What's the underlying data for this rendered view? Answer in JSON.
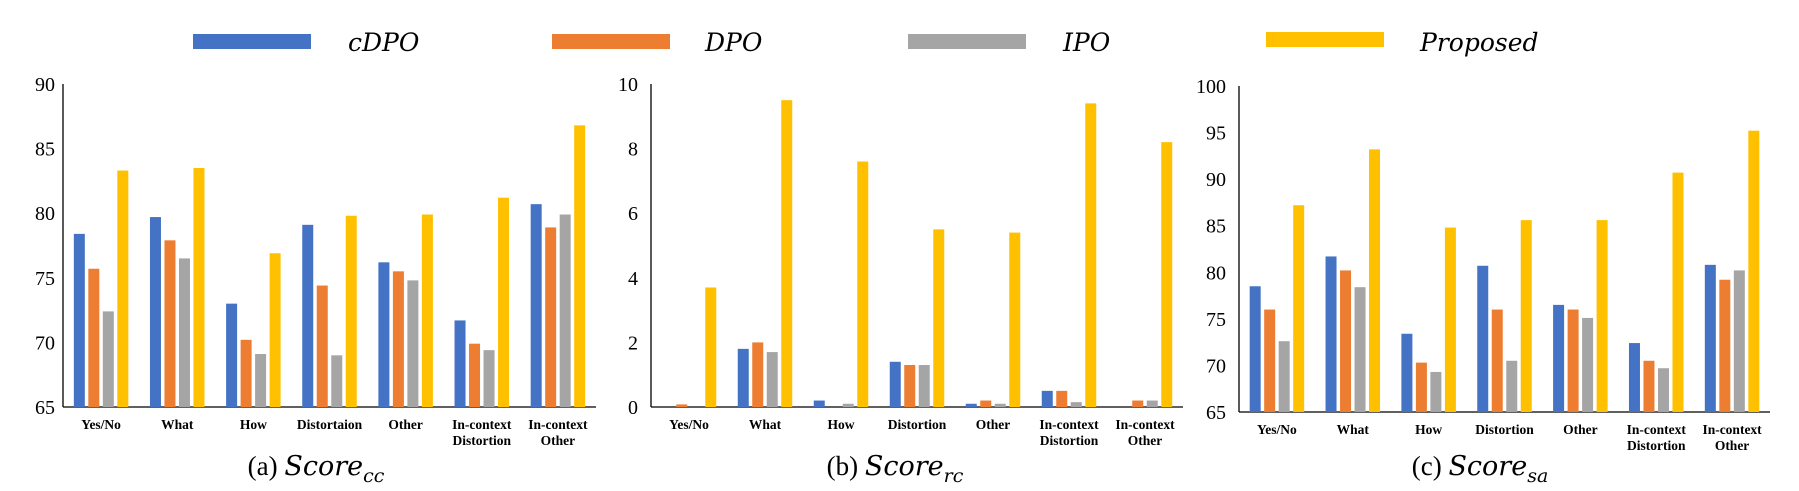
{
  "legend": [
    {
      "name": "cDPO",
      "color": "#4472C4"
    },
    {
      "name": "DPO",
      "color": "#ED7D31"
    },
    {
      "name": "IPO",
      "color": "#A5A5A5"
    },
    {
      "name": "Proposed",
      "color": "#FFC000"
    }
  ],
  "chart_data": [
    {
      "type": "bar",
      "caption_prefix": "(a) ",
      "caption_main": "Score",
      "caption_sub": "cc",
      "categories": [
        "Yes/No",
        "What",
        "How",
        "Distortaion",
        "Other",
        "In-context Distortion",
        "In-context Other"
      ],
      "ylim": [
        65,
        90
      ],
      "yticks": [
        65,
        70,
        75,
        80,
        85,
        90
      ],
      "series": [
        {
          "name": "cDPO",
          "values": [
            78.4,
            79.7,
            73.0,
            79.1,
            76.2,
            71.7,
            80.7
          ]
        },
        {
          "name": "DPO",
          "values": [
            75.7,
            77.9,
            70.2,
            74.4,
            75.5,
            69.9,
            78.9
          ]
        },
        {
          "name": "IPO",
          "values": [
            72.4,
            76.5,
            69.1,
            69.0,
            74.8,
            69.4,
            79.9
          ]
        },
        {
          "name": "Proposed",
          "values": [
            83.3,
            83.5,
            76.9,
            79.8,
            79.9,
            81.2,
            86.8
          ]
        }
      ]
    },
    {
      "type": "bar",
      "caption_prefix": "(b) ",
      "caption_main": "Score",
      "caption_sub": "rc",
      "categories": [
        "Yes/No",
        "What",
        "How",
        "Distortion",
        "Other",
        "In-context Distortion",
        "In-context Other"
      ],
      "ylim": [
        0,
        10
      ],
      "yticks": [
        0,
        2,
        4,
        6,
        8,
        10
      ],
      "series": [
        {
          "name": "cDPO",
          "values": [
            0.0,
            1.8,
            0.2,
            1.4,
            0.1,
            0.5,
            0.0
          ]
        },
        {
          "name": "DPO",
          "values": [
            0.08,
            2.0,
            0.0,
            1.3,
            0.2,
            0.5,
            0.2
          ]
        },
        {
          "name": "IPO",
          "values": [
            0.0,
            1.7,
            0.1,
            1.3,
            0.1,
            0.15,
            0.2
          ]
        },
        {
          "name": "Proposed",
          "values": [
            3.7,
            9.5,
            7.6,
            5.5,
            5.4,
            9.4,
            8.2
          ]
        }
      ]
    },
    {
      "type": "bar",
      "caption_prefix": "(c) ",
      "caption_main": "Score",
      "caption_sub": "sa",
      "categories": [
        "Yes/No",
        "What",
        "How",
        "Distortion",
        "Other",
        "In-context Distortion",
        "In-context Other"
      ],
      "ylim": [
        65,
        100
      ],
      "yticks": [
        65,
        70,
        75,
        80,
        85,
        90,
        95,
        100
      ],
      "series": [
        {
          "name": "cDPO",
          "values": [
            78.5,
            81.7,
            73.4,
            80.7,
            76.5,
            72.4,
            80.8
          ]
        },
        {
          "name": "DPO",
          "values": [
            76.0,
            80.2,
            70.3,
            76.0,
            76.0,
            70.5,
            79.2
          ]
        },
        {
          "name": "IPO",
          "values": [
            72.6,
            78.4,
            69.3,
            70.5,
            75.1,
            69.7,
            80.2
          ]
        },
        {
          "name": "Proposed",
          "values": [
            87.2,
            93.2,
            84.8,
            85.6,
            85.6,
            90.7,
            95.2
          ]
        }
      ]
    }
  ]
}
